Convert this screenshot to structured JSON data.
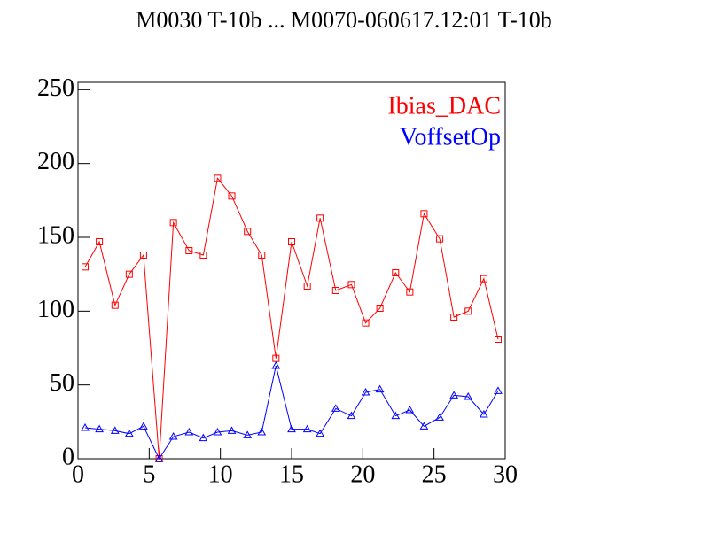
{
  "chart_data": {
    "type": "line",
    "title": "M0030 T-10b ... M0070-060617.12:01 T-10b",
    "x": [
      0.5,
      1.5,
      2.6,
      3.6,
      4.6,
      5.7,
      6.7,
      7.8,
      8.8,
      9.8,
      10.8,
      11.9,
      12.9,
      13.9,
      15.0,
      16.1,
      17.0,
      18.1,
      19.2,
      20.2,
      21.2,
      22.3,
      23.3,
      24.3,
      25.4,
      26.4,
      27.4,
      28.5,
      29.5
    ],
    "series": [
      {
        "name": "Ibias_DAC",
        "color": "#ff0000",
        "marker": "square",
        "values": [
          130,
          147,
          104,
          125,
          138,
          0,
          160,
          141,
          138,
          190,
          178,
          154,
          138,
          68,
          147,
          117,
          163,
          114,
          118,
          92,
          102,
          126,
          113,
          166,
          149,
          96,
          100,
          122,
          81
        ]
      },
      {
        "name": "VoffsetOp",
        "color": "#0000ff",
        "marker": "triangle",
        "values": [
          21,
          20,
          19,
          17,
          22,
          0,
          15,
          18,
          14,
          18,
          19,
          16,
          18,
          63,
          20,
          20,
          17,
          34,
          29,
          45,
          47,
          29,
          33,
          22,
          28,
          43,
          42,
          30,
          46
        ]
      }
    ],
    "xlim": [
      0,
      30
    ],
    "xticks": [
      0,
      5,
      10,
      15,
      20,
      25,
      30
    ],
    "ylim": [
      0,
      255
    ],
    "yticks": [
      0,
      50,
      100,
      150,
      200,
      250
    ],
    "legend": "upper right"
  }
}
